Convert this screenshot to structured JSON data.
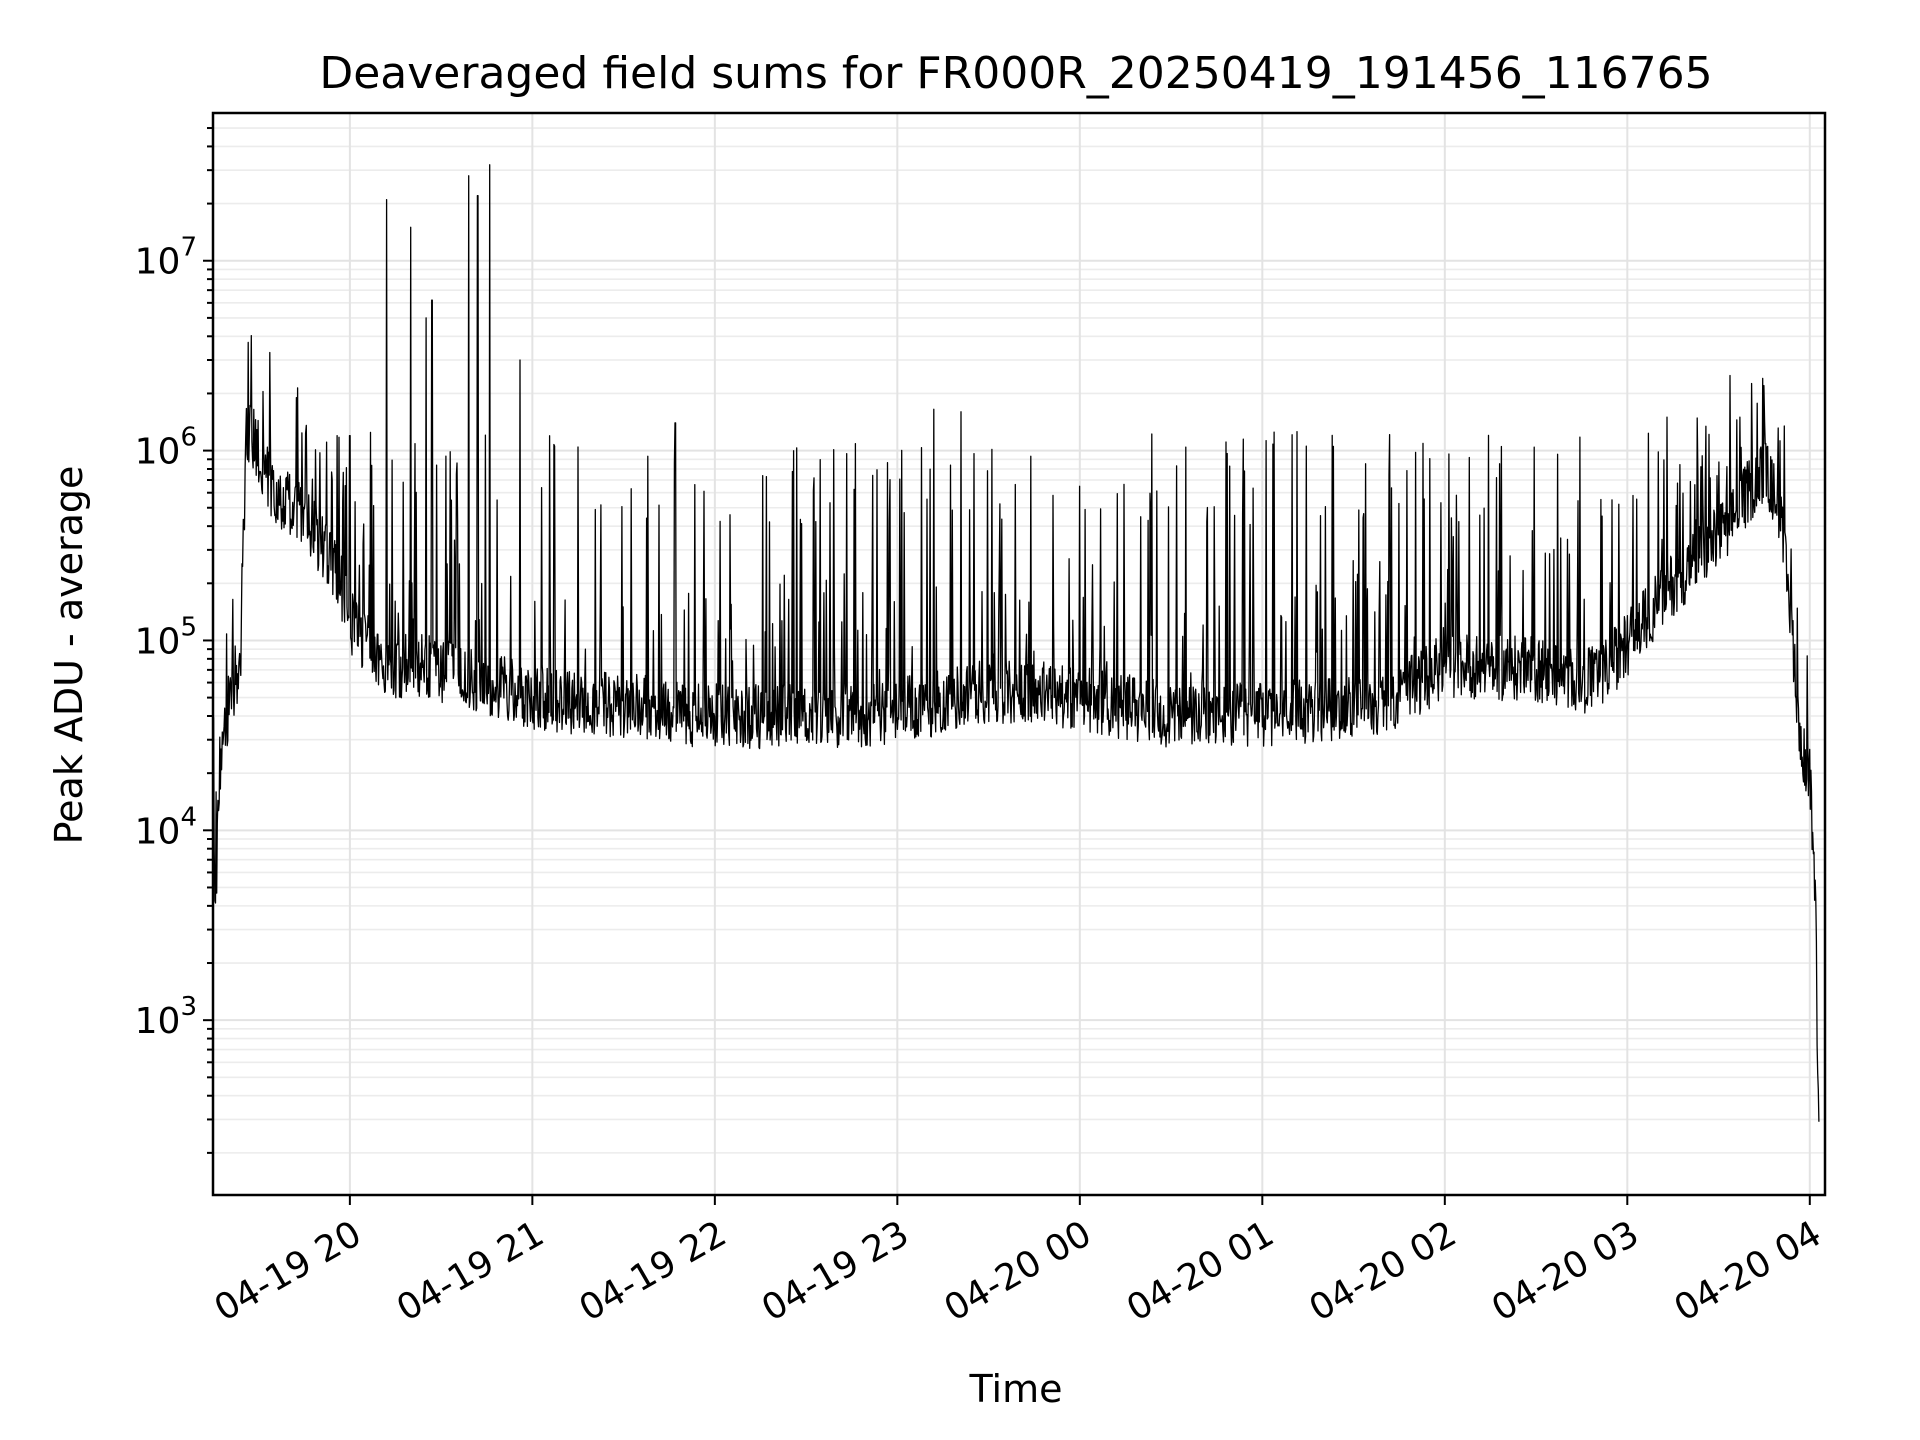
{
  "chart_data": {
    "type": "line",
    "title": "Deaveraged field sums for FR000R_20250419_191456_116765",
    "xlabel": "Time",
    "ylabel": "Peak ADU - average",
    "yscale": "log",
    "xlim": [
      "2025-04-19 19:15",
      "2025-04-20 04:05"
    ],
    "ylim": [
      120,
      60000000
    ],
    "grid": "major and minor",
    "x_ticks": [
      {
        "value": "2025-04-19 20:00",
        "label": "04-19 20"
      },
      {
        "value": "2025-04-19 21:00",
        "label": "04-19 21"
      },
      {
        "value": "2025-04-19 22:00",
        "label": "04-19 22"
      },
      {
        "value": "2025-04-19 23:00",
        "label": "04-19 23"
      },
      {
        "value": "2025-04-20 00:00",
        "label": "04-20 00"
      },
      {
        "value": "2025-04-20 01:00",
        "label": "04-20 01"
      },
      {
        "value": "2025-04-20 02:00",
        "label": "04-20 02"
      },
      {
        "value": "2025-04-20 03:00",
        "label": "04-20 03"
      },
      {
        "value": "2025-04-20 04:00",
        "label": "04-20 04"
      }
    ],
    "y_ticks": [
      {
        "value": 1000,
        "base": "10",
        "exp": "3"
      },
      {
        "value": 10000,
        "base": "10",
        "exp": "4"
      },
      {
        "value": 100000,
        "base": "10",
        "exp": "5"
      },
      {
        "value": 1000000,
        "base": "10",
        "exp": "6"
      },
      {
        "value": 10000000,
        "base": "10",
        "exp": "7"
      }
    ],
    "series_color": "#000000",
    "baseline": [
      [
        "2025-04-19 19:15",
        12000
      ],
      [
        "2025-04-19 19:16",
        4000
      ],
      [
        "2025-04-19 19:17",
        20000
      ],
      [
        "2025-04-19 19:20",
        45000
      ],
      [
        "2025-04-19 19:24",
        80000
      ],
      [
        "2025-04-19 19:26",
        1300000
      ],
      [
        "2025-04-19 19:30",
        1000000
      ],
      [
        "2025-04-19 19:35",
        600000
      ],
      [
        "2025-04-19 19:45",
        450000
      ],
      [
        "2025-04-19 19:55",
        250000
      ],
      [
        "2025-04-19 20:00",
        130000
      ],
      [
        "2025-04-19 20:10",
        75000
      ],
      [
        "2025-04-19 20:30",
        70000
      ],
      [
        "2025-04-19 21:00",
        50000
      ],
      [
        "2025-04-19 21:30",
        45000
      ],
      [
        "2025-04-19 22:00",
        40000
      ],
      [
        "2025-04-19 22:30",
        40000
      ],
      [
        "2025-04-19 23:00",
        42000
      ],
      [
        "2025-04-19 23:30",
        55000
      ],
      [
        "2025-04-20 00:00",
        50000
      ],
      [
        "2025-04-20 00:30",
        40000
      ],
      [
        "2025-04-20 01:00",
        40000
      ],
      [
        "2025-04-20 01:30",
        45000
      ],
      [
        "2025-04-20 01:45",
        50000
      ],
      [
        "2025-04-20 02:00",
        75000
      ],
      [
        "2025-04-20 02:30",
        70000
      ],
      [
        "2025-04-20 02:50",
        60000
      ],
      [
        "2025-04-20 03:15",
        200000
      ],
      [
        "2025-04-20 03:30",
        350000
      ],
      [
        "2025-04-20 03:45",
        800000
      ],
      [
        "2025-04-20 03:50",
        500000
      ],
      [
        "2025-04-20 03:55",
        80000
      ],
      [
        "2025-04-20 03:57",
        25000
      ],
      [
        "2025-04-20 04:00",
        20000
      ],
      [
        "2025-04-20 04:02",
        3000
      ],
      [
        "2025-04-20 04:03",
        200
      ]
    ],
    "spikes": [
      [
        "2025-04-19 20:12",
        21000000
      ],
      [
        "2025-04-19 20:20",
        15000000
      ],
      [
        "2025-04-19 20:25",
        5000000
      ],
      [
        "2025-04-19 20:27",
        6200000
      ],
      [
        "2025-04-19 20:39",
        28000000
      ],
      [
        "2025-04-19 20:42",
        22000000
      ],
      [
        "2025-04-19 20:46",
        32000000
      ],
      [
        "2025-04-19 20:56",
        3000000
      ],
      [
        "2025-04-19 20:00",
        1200000
      ],
      [
        "2025-04-19 21:47",
        1400000
      ],
      [
        "2025-04-19 23:12",
        1650000
      ],
      [
        "2025-04-19 23:21",
        1600000
      ],
      [
        "2025-04-20 03:45",
        2200000
      ],
      [
        "2025-04-20 03:37",
        1500000
      ],
      [
        "2025-04-20 03:13",
        1500000
      ]
    ]
  }
}
